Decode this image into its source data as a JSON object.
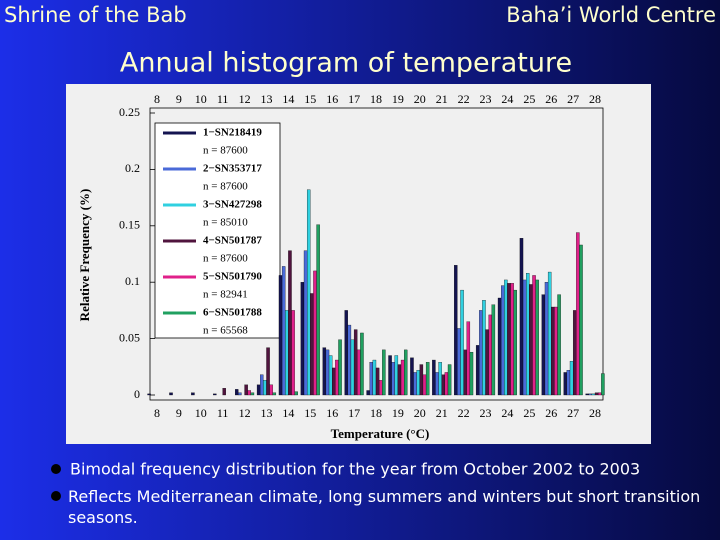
{
  "slide": {
    "header_left": "Shrine of the Bab",
    "header_right": "Baha’i World Centre",
    "title": "Annual histogram of temperature",
    "bullets": [
      "Bimodal frequency distribution for the year from October 2002 to 2003",
      "Reflects  Mediterranean climate, long summers and winters but short transition seasons."
    ]
  },
  "chart_data": {
    "type": "bar",
    "x_label": "Temperature (°C)",
    "y_label": "Relative Frequency (%)",
    "categories": [
      8,
      9,
      10,
      11,
      12,
      13,
      14,
      15,
      16,
      17,
      18,
      19,
      20,
      21,
      22,
      23,
      24,
      25,
      26,
      27,
      28
    ],
    "ylim": [
      0,
      0.25
    ],
    "yticks": [
      0,
      0.05,
      0.1,
      0.15,
      0.2,
      0.25
    ],
    "grid": false,
    "series": [
      {
        "name": "1−SN218419",
        "n_label": "n = 87600",
        "color": "#141450",
        "values": [
          0.001,
          0.002,
          0.002,
          0.001,
          0.005,
          0.009,
          0.106,
          0.1,
          0.042,
          0.075,
          0.004,
          0.035,
          0.033,
          0.031,
          0.115,
          0.044,
          0.086,
          0.139,
          0.089,
          0.02,
          0.001
        ]
      },
      {
        "name": "2−SN353717",
        "n_label": "n = 87600",
        "color": "#4a6ad8",
        "values": [
          0,
          0,
          0,
          0,
          0.002,
          0.018,
          0.114,
          0.128,
          0.04,
          0.062,
          0.029,
          0.029,
          0.02,
          0.02,
          0.059,
          0.075,
          0.097,
          0.102,
          0.1,
          0.022,
          0.001
        ]
      },
      {
        "name": "3−SN427298",
        "n_label": "n = 85010",
        "color": "#30d0e0",
        "values": [
          0,
          0,
          0,
          0,
          0,
          0.013,
          0.075,
          0.182,
          0.035,
          0.049,
          0.031,
          0.035,
          0.022,
          0.029,
          0.093,
          0.084,
          0.102,
          0.108,
          0.109,
          0.03,
          0.001
        ]
      },
      {
        "name": "4−SN501787",
        "n_label": "n = 87600",
        "color": "#50143e",
        "values": [
          0,
          0,
          0,
          0.006,
          0.009,
          0.042,
          0.128,
          0.09,
          0.024,
          0.058,
          0.024,
          0.027,
          0.027,
          0.018,
          0.04,
          0.058,
          0.099,
          0.098,
          0.078,
          0.075,
          0.002
        ]
      },
      {
        "name": "5−SN501790",
        "n_label": "n = 82941",
        "color": "#e0208a",
        "values": [
          0,
          0,
          0,
          0,
          0.004,
          0.009,
          0.075,
          0.11,
          0.031,
          0.04,
          0.013,
          0.031,
          0.018,
          0.02,
          0.065,
          0.071,
          0.099,
          0.106,
          0.078,
          0.144,
          0.002
        ]
      },
      {
        "name": "6−SN501788",
        "n_label": "n = 65568",
        "color": "#20a060",
        "values": [
          0,
          0,
          0,
          0,
          0.002,
          0.002,
          0.003,
          0.151,
          0.049,
          0.055,
          0.04,
          0.04,
          0.029,
          0.027,
          0.038,
          0.08,
          0.093,
          0.102,
          0.089,
          0.133,
          0.019
        ]
      }
    ]
  }
}
